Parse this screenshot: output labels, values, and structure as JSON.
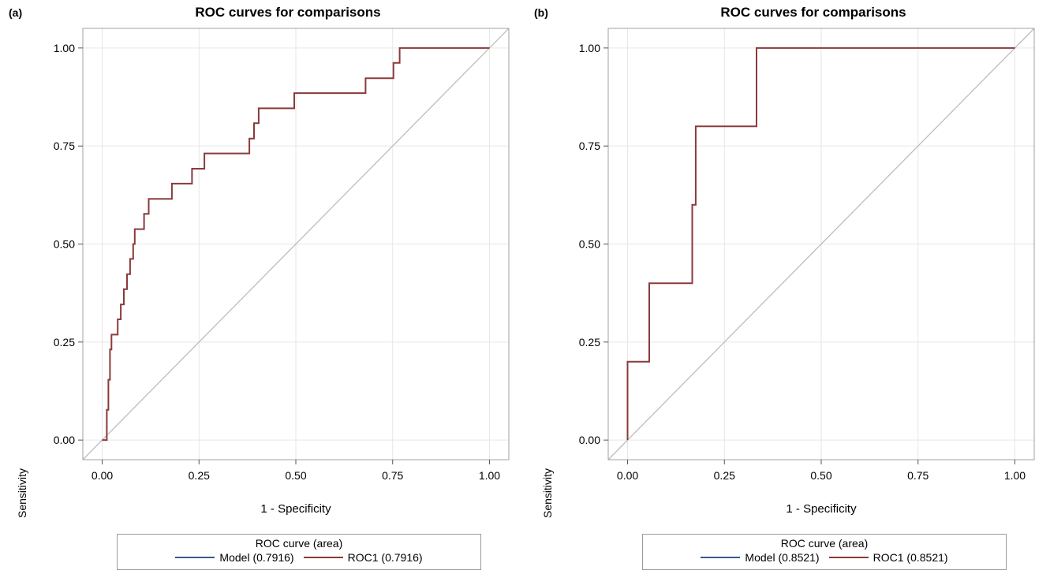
{
  "chart_data": [
    {
      "type": "line",
      "panel_label": "(a)",
      "title": "ROC curves for comparisons",
      "xlabel": "1 - Specificity",
      "ylabel": "Sensitivity",
      "xlim": [
        -0.05,
        1.05
      ],
      "ylim": [
        -0.05,
        1.05
      ],
      "xticks": [
        "0.00",
        "0.25",
        "0.50",
        "0.75",
        "1.00"
      ],
      "yticks": [
        "0.00",
        "0.25",
        "0.50",
        "0.75",
        "1.00"
      ],
      "grid": true,
      "legend": {
        "placement": "bottom",
        "title": "ROC curve (area)",
        "entries": [
          {
            "label": "Model",
            "area": "(0.7916)",
            "color": "#3a5a8c"
          },
          {
            "label": "ROC1",
            "area": "(0.7916)",
            "color": "#8b3a3a"
          }
        ]
      },
      "reference_line": {
        "x": [
          0,
          1
        ],
        "y": [
          0,
          1
        ],
        "color": "#bdbdbd"
      },
      "series": [
        {
          "name": "ROC1",
          "color": "#8b3a3a",
          "x": [
            0.0,
            0.012,
            0.012,
            0.016,
            0.016,
            0.02,
            0.02,
            0.024,
            0.024,
            0.028,
            0.028,
            0.04,
            0.04,
            0.048,
            0.048,
            0.056,
            0.056,
            0.064,
            0.064,
            0.072,
            0.072,
            0.08,
            0.08,
            0.084,
            0.084,
            0.108,
            0.108,
            0.12,
            0.12,
            0.18,
            0.18,
            0.232,
            0.232,
            0.264,
            0.264,
            0.38,
            0.38,
            0.392,
            0.392,
            0.404,
            0.404,
            0.496,
            0.496,
            0.68,
            0.68,
            0.752,
            0.752,
            0.768,
            0.768,
            1.0
          ],
          "y": [
            0.0,
            0.0,
            0.077,
            0.077,
            0.154,
            0.154,
            0.231,
            0.231,
            0.269,
            0.269,
            0.269,
            0.269,
            0.308,
            0.308,
            0.346,
            0.346,
            0.385,
            0.385,
            0.423,
            0.423,
            0.462,
            0.462,
            0.5,
            0.5,
            0.538,
            0.538,
            0.577,
            0.577,
            0.615,
            0.615,
            0.654,
            0.654,
            0.692,
            0.692,
            0.731,
            0.731,
            0.769,
            0.769,
            0.808,
            0.808,
            0.846,
            0.846,
            0.885,
            0.885,
            0.923,
            0.923,
            0.962,
            0.962,
            1.0,
            1.0
          ]
        }
      ]
    },
    {
      "type": "line",
      "panel_label": "(b)",
      "title": "ROC curves for comparisons",
      "xlabel": "1 - Specificity",
      "ylabel": "Sensitivity",
      "xlim": [
        -0.05,
        1.05
      ],
      "ylim": [
        -0.05,
        1.05
      ],
      "xticks": [
        "0.00",
        "0.25",
        "0.50",
        "0.75",
        "1.00"
      ],
      "yticks": [
        "0.00",
        "0.25",
        "0.50",
        "0.75",
        "1.00"
      ],
      "grid": true,
      "legend": {
        "placement": "bottom",
        "title": "ROC curve (area)",
        "entries": [
          {
            "label": "Model",
            "area": "(0.8521)",
            "color": "#3a5a8c"
          },
          {
            "label": "ROC1",
            "area": "(0.8521)",
            "color": "#8b3a3a"
          }
        ]
      },
      "reference_line": {
        "x": [
          0,
          1
        ],
        "y": [
          0,
          1
        ],
        "color": "#bdbdbd"
      },
      "series": [
        {
          "name": "ROC1",
          "color": "#8b3a3a",
          "x": [
            0.0,
            0.0,
            0.056,
            0.056,
            0.167,
            0.167,
            0.176,
            0.176,
            0.333,
            0.333,
            1.0
          ],
          "y": [
            0.0,
            0.2,
            0.2,
            0.4,
            0.4,
            0.6,
            0.6,
            0.8,
            0.8,
            1.0,
            1.0
          ]
        }
      ]
    }
  ]
}
